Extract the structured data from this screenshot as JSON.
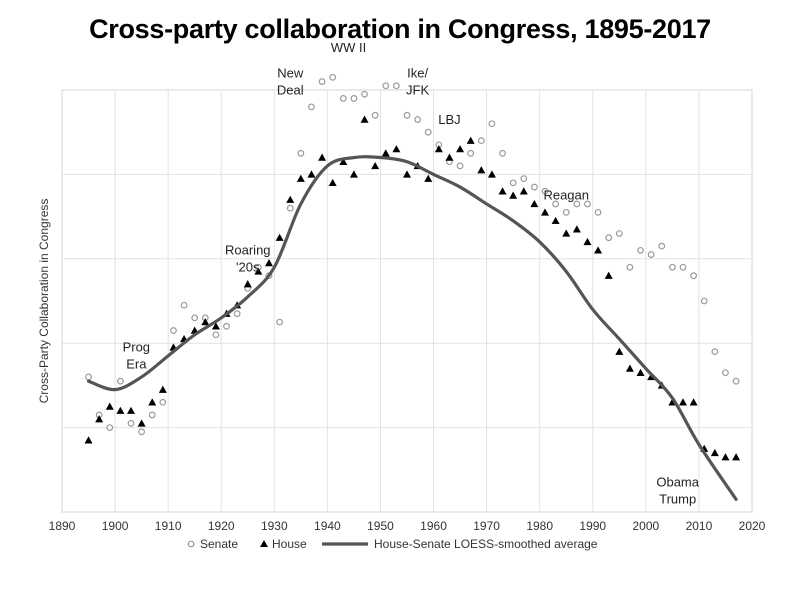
{
  "chart_data": {
    "type": "scatter",
    "title": "Cross-party collaboration in Congress, 1895-2017",
    "xlabel": "",
    "ylabel": "Cross-Party Collaboration in Congress",
    "xlim": [
      1890,
      2020
    ],
    "ylim": [
      0,
      10
    ],
    "x_ticks": [
      1890,
      1900,
      1910,
      1920,
      1930,
      1940,
      1950,
      1960,
      1970,
      1980,
      1990,
      2000,
      2010,
      2020
    ],
    "y_tick_labels_shown": false,
    "grid": true,
    "legend_position": "bottom",
    "series": [
      {
        "name": "Senate",
        "marker": "open-circle",
        "color": "#9a9a9a",
        "points": [
          [
            1895,
            3.2
          ],
          [
            1897,
            2.3
          ],
          [
            1899,
            2.0
          ],
          [
            1901,
            3.1
          ],
          [
            1903,
            2.1
          ],
          [
            1905,
            1.9
          ],
          [
            1907,
            2.3
          ],
          [
            1909,
            2.6
          ],
          [
            1911,
            4.3
          ],
          [
            1913,
            4.9
          ],
          [
            1915,
            4.6
          ],
          [
            1917,
            4.6
          ],
          [
            1919,
            4.2
          ],
          [
            1921,
            4.4
          ],
          [
            1923,
            4.7
          ],
          [
            1925,
            5.3
          ],
          [
            1927,
            5.8
          ],
          [
            1929,
            5.6
          ],
          [
            1931,
            4.5
          ],
          [
            1933,
            7.2
          ],
          [
            1935,
            8.5
          ],
          [
            1937,
            9.6
          ],
          [
            1939,
            10.2
          ],
          [
            1941,
            10.3
          ],
          [
            1943,
            9.8
          ],
          [
            1945,
            9.8
          ],
          [
            1947,
            9.9
          ],
          [
            1949,
            9.4
          ],
          [
            1951,
            10.1
          ],
          [
            1953,
            10.1
          ],
          [
            1955,
            9.4
          ],
          [
            1957,
            9.3
          ],
          [
            1959,
            9.0
          ],
          [
            1961,
            8.7
          ],
          [
            1963,
            8.3
          ],
          [
            1965,
            8.2
          ],
          [
            1967,
            8.5
          ],
          [
            1969,
            8.8
          ],
          [
            1971,
            9.2
          ],
          [
            1973,
            8.5
          ],
          [
            1975,
            7.8
          ],
          [
            1977,
            7.9
          ],
          [
            1979,
            7.7
          ],
          [
            1981,
            7.6
          ],
          [
            1983,
            7.3
          ],
          [
            1985,
            7.1
          ],
          [
            1987,
            7.3
          ],
          [
            1989,
            7.3
          ],
          [
            1991,
            7.1
          ],
          [
            1993,
            6.5
          ],
          [
            1995,
            6.6
          ],
          [
            1997,
            5.8
          ],
          [
            1999,
            6.2
          ],
          [
            2001,
            6.1
          ],
          [
            2003,
            6.3
          ],
          [
            2005,
            5.8
          ],
          [
            2007,
            5.8
          ],
          [
            2009,
            5.6
          ],
          [
            2011,
            5.0
          ],
          [
            2013,
            3.8
          ],
          [
            2015,
            3.3
          ],
          [
            2017,
            3.1
          ]
        ]
      },
      {
        "name": "House",
        "marker": "filled-triangle",
        "color": "#000000",
        "points": [
          [
            1895,
            1.7
          ],
          [
            1897,
            2.2
          ],
          [
            1899,
            2.5
          ],
          [
            1901,
            2.4
          ],
          [
            1903,
            2.4
          ],
          [
            1905,
            2.1
          ],
          [
            1907,
            2.6
          ],
          [
            1909,
            2.9
          ],
          [
            1911,
            3.9
          ],
          [
            1913,
            4.1
          ],
          [
            1915,
            4.3
          ],
          [
            1917,
            4.5
          ],
          [
            1919,
            4.4
          ],
          [
            1921,
            4.7
          ],
          [
            1923,
            4.9
          ],
          [
            1925,
            5.4
          ],
          [
            1927,
            5.7
          ],
          [
            1929,
            5.9
          ],
          [
            1931,
            6.5
          ],
          [
            1933,
            7.4
          ],
          [
            1935,
            7.9
          ],
          [
            1937,
            8.0
          ],
          [
            1939,
            8.4
          ],
          [
            1941,
            7.8
          ],
          [
            1943,
            8.3
          ],
          [
            1945,
            8.0
          ],
          [
            1947,
            9.3
          ],
          [
            1949,
            8.2
          ],
          [
            1951,
            8.5
          ],
          [
            1953,
            8.6
          ],
          [
            1955,
            8.0
          ],
          [
            1957,
            8.2
          ],
          [
            1959,
            7.9
          ],
          [
            1961,
            8.6
          ],
          [
            1963,
            8.4
          ],
          [
            1965,
            8.6
          ],
          [
            1967,
            8.8
          ],
          [
            1969,
            8.1
          ],
          [
            1971,
            8.0
          ],
          [
            1973,
            7.6
          ],
          [
            1975,
            7.5
          ],
          [
            1977,
            7.6
          ],
          [
            1979,
            7.3
          ],
          [
            1981,
            7.1
          ],
          [
            1983,
            6.9
          ],
          [
            1985,
            6.6
          ],
          [
            1987,
            6.7
          ],
          [
            1989,
            6.4
          ],
          [
            1991,
            6.2
          ],
          [
            1993,
            5.6
          ],
          [
            1995,
            3.8
          ],
          [
            1997,
            3.4
          ],
          [
            1999,
            3.3
          ],
          [
            2001,
            3.2
          ],
          [
            2003,
            3.0
          ],
          [
            2005,
            2.6
          ],
          [
            2007,
            2.6
          ],
          [
            2009,
            2.6
          ],
          [
            2011,
            1.5
          ],
          [
            2013,
            1.4
          ],
          [
            2015,
            1.3
          ],
          [
            2017,
            1.3
          ]
        ]
      },
      {
        "name": "House-Senate LOESS-smoothed average",
        "marker": "line",
        "color": "#555555",
        "points": [
          [
            1895,
            3.1
          ],
          [
            1900,
            2.9
          ],
          [
            1905,
            3.2
          ],
          [
            1910,
            3.7
          ],
          [
            1915,
            4.2
          ],
          [
            1920,
            4.6
          ],
          [
            1925,
            5.1
          ],
          [
            1930,
            5.8
          ],
          [
            1935,
            7.3
          ],
          [
            1940,
            8.2
          ],
          [
            1945,
            8.4
          ],
          [
            1950,
            8.4
          ],
          [
            1955,
            8.3
          ],
          [
            1960,
            8.0
          ],
          [
            1965,
            7.7
          ],
          [
            1970,
            7.3
          ],
          [
            1975,
            6.9
          ],
          [
            1980,
            6.4
          ],
          [
            1985,
            5.7
          ],
          [
            1990,
            4.8
          ],
          [
            1995,
            4.1
          ],
          [
            2000,
            3.4
          ],
          [
            2005,
            2.7
          ],
          [
            2010,
            1.6
          ],
          [
            2017,
            0.3
          ]
        ]
      }
    ],
    "annotations": [
      {
        "lines": [
          "Prog",
          "Era"
        ],
        "x": 1904,
        "y": 3.8
      },
      {
        "lines": [
          "Roaring",
          "'20s"
        ],
        "x": 1925,
        "y": 6.1
      },
      {
        "lines": [
          "New",
          "Deal"
        ],
        "x": 1933,
        "y": 10.3
      },
      {
        "lines": [
          "WW II"
        ],
        "x": 1944,
        "y": 10.9
      },
      {
        "lines": [
          "Ike/",
          "JFK"
        ],
        "x": 1957,
        "y": 10.3
      },
      {
        "lines": [
          "LBJ"
        ],
        "x": 1963,
        "y": 9.2
      },
      {
        "lines": [
          "Reagan"
        ],
        "x": 1985,
        "y": 7.4
      },
      {
        "lines": [
          "Obama",
          "Trump"
        ],
        "x": 2006,
        "y": 0.6
      }
    ]
  }
}
